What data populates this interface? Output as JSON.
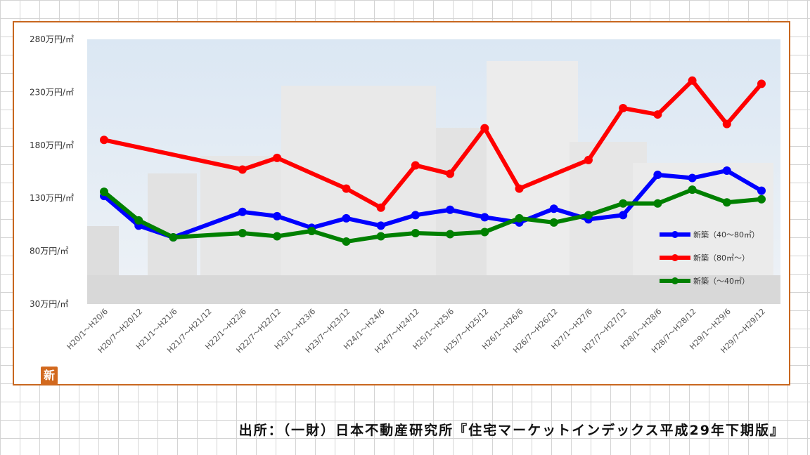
{
  "chart_data": {
    "type": "line",
    "ylim": [
      30,
      280
    ],
    "yticks": [
      "280万円/㎡",
      "230万円/㎡",
      "180万円/㎡",
      "130万円/㎡",
      "80万円/㎡",
      "30万円/㎡"
    ],
    "ytick_values": [
      280,
      230,
      180,
      130,
      80,
      30
    ],
    "categories": [
      "H20/1～H20/6",
      "H20/7～H20/12",
      "H21/1～H21/6",
      "H21/7～H21/12",
      "H22/1～H22/6",
      "H22/7～H22/12",
      "H23/1～H23/6",
      "H23/7～H23/12",
      "H24/1～H24/6",
      "H24/7～H24/12",
      "H25/1～H25/6",
      "H25/7～H25/12",
      "H26/1～H26/6",
      "H26/7～H26/12",
      "H27/1～H27/6",
      "H27/7～H27/12",
      "H28/1～H28/6",
      "H28/7～H28/12",
      "H29/1～H29/6",
      "H29/7～H29/12"
    ],
    "legend_position": "bottom-right",
    "series": [
      {
        "name": "新築（40～80㎡）",
        "color": "#0000ff",
        "values": [
          132,
          null,
          93,
          null,
          117,
          113,
          102,
          111,
          104,
          114,
          119,
          112,
          107,
          120,
          110,
          114,
          152,
          149,
          156,
          137
        ],
        "values_all": [
          132,
          104,
          93,
          null,
          117,
          113,
          102,
          111,
          104,
          114,
          119,
          112,
          107,
          120,
          110,
          114,
          152,
          149,
          156,
          137
        ]
      },
      {
        "name": "新築（80㎡～）",
        "color": "#ff0000",
        "values_all": [
          185,
          null,
          null,
          null,
          157,
          168,
          null,
          139,
          121,
          161,
          153,
          196,
          139,
          null,
          166,
          215,
          209,
          241,
          200,
          238
        ]
      },
      {
        "name": "新築（～40㎡）",
        "color": "#008000",
        "values_all": [
          136,
          109,
          93,
          null,
          97,
          94,
          99,
          89,
          94,
          97,
          96,
          98,
          111,
          107,
          114,
          125,
          125,
          138,
          126,
          129
        ]
      }
    ]
  },
  "badge_text": "新",
  "source_note": "出所：（一財）日本不動産研究所『住宅マーケットインデックス平成29年下期版』"
}
